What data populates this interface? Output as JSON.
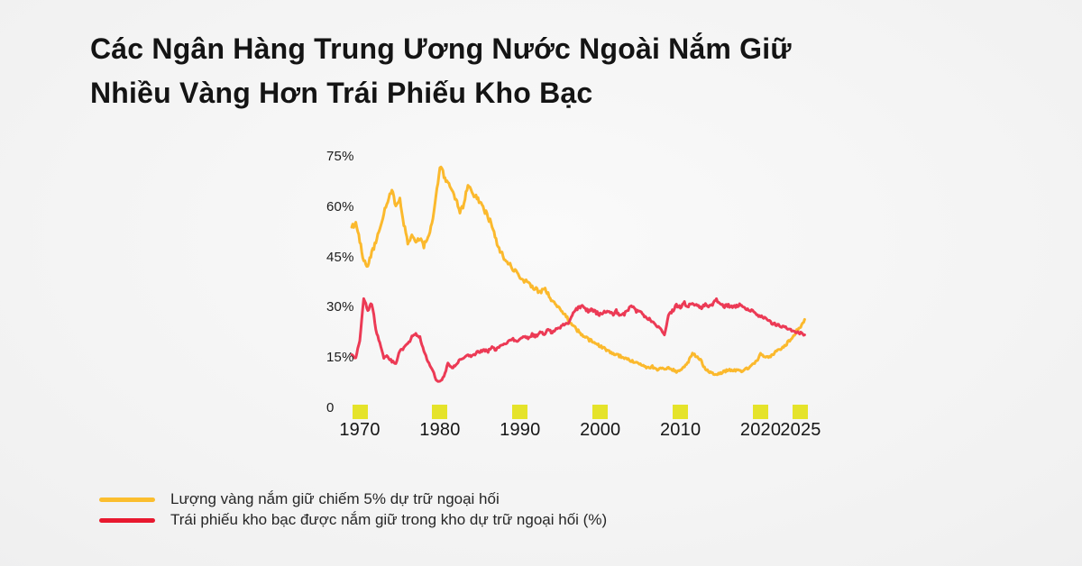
{
  "title": {
    "line1": "Các Ngân Hàng Trung Ương Nước Ngoài Nắm Giữ",
    "line2": "Nhiều Vàng Hơn Trái Phiếu Kho Bạc"
  },
  "colors": {
    "gold_line": "#FBB92D",
    "treasury_line": "#EC3A55",
    "legend_gold": "#FBBE2E",
    "legend_red": "#E8192F",
    "tick_marker": "#E5E32A",
    "title_text": "#141414",
    "axis_text": "#1A1A1A"
  },
  "legend": {
    "items": [
      {
        "label": "Lượng vàng nắm giữ chiếm 5% dự trữ ngoại hối",
        "color": "#FBBE2E"
      },
      {
        "label": "Trái phiếu kho bạc được nắm giữ trong kho dự trữ ngoại hối (%)",
        "color": "#E8192F"
      }
    ]
  },
  "chart_data": {
    "type": "line",
    "title": "",
    "xlabel": "",
    "ylabel": "",
    "grid": false,
    "legend_position": "bottom-left",
    "xlim": [
      1968.8,
      2026.2
    ],
    "ylim": [
      0,
      75
    ],
    "y_ticks": [
      {
        "label": "75%",
        "value": 75
      },
      {
        "label": "60%",
        "value": 60
      },
      {
        "label": "45%",
        "value": 45
      },
      {
        "label": "30%",
        "value": 30
      },
      {
        "label": "15%",
        "value": 15
      },
      {
        "label": "0",
        "value": 0
      }
    ],
    "x_ticks": [
      {
        "label": "1970",
        "year": 1970
      },
      {
        "label": "1980",
        "year": 1980
      },
      {
        "label": "1990",
        "year": 1990
      },
      {
        "label": "2000",
        "year": 2000
      },
      {
        "label": "2010",
        "year": 2010
      },
      {
        "label": "2020",
        "year": 2020
      },
      {
        "label": "2025",
        "year": 2025
      }
    ],
    "noise_texture_amplitude": 0.45,
    "series": [
      {
        "name": "Lượng vàng nắm giữ chiếm 5% dự trữ ngoại hối",
        "color": "#FBB92D",
        "points": [
          [
            1969,
            54
          ],
          [
            1969.5,
            55
          ],
          [
            1970,
            50
          ],
          [
            1970.5,
            44
          ],
          [
            1971,
            42.5
          ],
          [
            1971.5,
            46.5
          ],
          [
            1972,
            49.5
          ],
          [
            1972.5,
            54
          ],
          [
            1973,
            58
          ],
          [
            1973.5,
            62
          ],
          [
            1974,
            65
          ],
          [
            1974.5,
            60
          ],
          [
            1975,
            63
          ],
          [
            1975.5,
            55
          ],
          [
            1976,
            49.5
          ],
          [
            1976.5,
            51
          ],
          [
            1977,
            49.5
          ],
          [
            1977.5,
            50.5
          ],
          [
            1978,
            48.5
          ],
          [
            1978.5,
            51
          ],
          [
            1979,
            55
          ],
          [
            1979.5,
            63
          ],
          [
            1980,
            72
          ],
          [
            1980.5,
            69.5
          ],
          [
            1981,
            67
          ],
          [
            1981.5,
            64.5
          ],
          [
            1982,
            62
          ],
          [
            1982.5,
            58.5
          ],
          [
            1983,
            61
          ],
          [
            1983.5,
            67
          ],
          [
            1984,
            64.5
          ],
          [
            1984.5,
            63
          ],
          [
            1985,
            61
          ],
          [
            1985.5,
            59.5
          ],
          [
            1986,
            57
          ],
          [
            1986.5,
            54.5
          ],
          [
            1987,
            50
          ],
          [
            1987.5,
            47
          ],
          [
            1988,
            45
          ],
          [
            1988.5,
            43.5
          ],
          [
            1989,
            42
          ],
          [
            1989.5,
            40.5
          ],
          [
            1990,
            39
          ],
          [
            1990.5,
            38
          ],
          [
            1991,
            37.5
          ],
          [
            1991.5,
            36
          ],
          [
            1992,
            35.5
          ],
          [
            1992.5,
            34.5
          ],
          [
            1993,
            36
          ],
          [
            1993.5,
            34
          ],
          [
            1994,
            32
          ],
          [
            1994.5,
            31
          ],
          [
            1995,
            29.5
          ],
          [
            1995.5,
            28
          ],
          [
            1996,
            26.5
          ],
          [
            1996.5,
            25
          ],
          [
            1997,
            23.5
          ],
          [
            1997.5,
            22.5
          ],
          [
            1998,
            21.5
          ],
          [
            1998.5,
            20.5
          ],
          [
            1999,
            20
          ],
          [
            1999.5,
            19.5
          ],
          [
            2000,
            18.5
          ],
          [
            2000.5,
            18
          ],
          [
            2001,
            17
          ],
          [
            2001.5,
            16.5
          ],
          [
            2002,
            16
          ],
          [
            2002.5,
            15.5
          ],
          [
            2003,
            15
          ],
          [
            2003.5,
            14.5
          ],
          [
            2004,
            14
          ],
          [
            2004.5,
            13.5
          ],
          [
            2005,
            13
          ],
          [
            2005.5,
            12.5
          ],
          [
            2006,
            12
          ],
          [
            2006.5,
            12.5
          ],
          [
            2007,
            11.5
          ],
          [
            2007.5,
            12
          ],
          [
            2008,
            11.5
          ],
          [
            2008.5,
            12
          ],
          [
            2009,
            11.5
          ],
          [
            2009.5,
            11
          ],
          [
            2010,
            11.5
          ],
          [
            2010.5,
            12.5
          ],
          [
            2011,
            14
          ],
          [
            2011.5,
            16.5
          ],
          [
            2012,
            15.5
          ],
          [
            2012.5,
            14.5
          ],
          [
            2013,
            12
          ],
          [
            2013.5,
            11
          ],
          [
            2014,
            10.5
          ],
          [
            2014.5,
            10
          ],
          [
            2015,
            10.5
          ],
          [
            2015.5,
            11
          ],
          [
            2016,
            11.5
          ],
          [
            2016.5,
            11
          ],
          [
            2017,
            11.5
          ],
          [
            2017.5,
            11
          ],
          [
            2018,
            11.5
          ],
          [
            2018.5,
            12
          ],
          [
            2019,
            13
          ],
          [
            2019.5,
            14
          ],
          [
            2020,
            16.5
          ],
          [
            2020.5,
            15.5
          ],
          [
            2021,
            15
          ],
          [
            2021.5,
            16
          ],
          [
            2022,
            17
          ],
          [
            2022.5,
            17.5
          ],
          [
            2023,
            18.5
          ],
          [
            2023.5,
            20
          ],
          [
            2024,
            21
          ],
          [
            2024.5,
            23
          ],
          [
            2025,
            24.5
          ],
          [
            2025.5,
            26.5
          ]
        ]
      },
      {
        "name": "Trái phiếu kho bạc được nắm giữ trong kho dự trữ ngoại hối (%)",
        "color": "#EC3A55",
        "points": [
          [
            1969,
            16
          ],
          [
            1969.5,
            15
          ],
          [
            1970,
            20
          ],
          [
            1970.5,
            33
          ],
          [
            1971,
            29
          ],
          [
            1971.5,
            31.5
          ],
          [
            1972,
            23.5
          ],
          [
            1972.5,
            19.5
          ],
          [
            1973,
            15
          ],
          [
            1973.5,
            15.5
          ],
          [
            1974,
            14
          ],
          [
            1974.5,
            13.5
          ],
          [
            1975,
            17
          ],
          [
            1975.5,
            18
          ],
          [
            1976,
            19
          ],
          [
            1976.5,
            21.5
          ],
          [
            1977,
            22
          ],
          [
            1977.5,
            21
          ],
          [
            1978,
            17
          ],
          [
            1978.5,
            14
          ],
          [
            1979,
            12
          ],
          [
            1979.5,
            8.5
          ],
          [
            1980,
            8
          ],
          [
            1980.5,
            9.5
          ],
          [
            1981,
            13.5
          ],
          [
            1981.5,
            12
          ],
          [
            1982,
            13
          ],
          [
            1982.5,
            14.5
          ],
          [
            1983,
            15
          ],
          [
            1983.5,
            16
          ],
          [
            1984,
            15.5
          ],
          [
            1984.5,
            16.5
          ],
          [
            1985,
            17
          ],
          [
            1985.5,
            17.5
          ],
          [
            1986,
            17
          ],
          [
            1986.5,
            18
          ],
          [
            1987,
            17.5
          ],
          [
            1987.5,
            18.5
          ],
          [
            1988,
            19
          ],
          [
            1988.5,
            20
          ],
          [
            1989,
            21
          ],
          [
            1989.5,
            20
          ],
          [
            1990,
            20.5
          ],
          [
            1990.5,
            21.5
          ],
          [
            1991,
            21
          ],
          [
            1991.5,
            22
          ],
          [
            1992,
            21.5
          ],
          [
            1992.5,
            22.8
          ],
          [
            1993,
            22
          ],
          [
            1993.5,
            23.3
          ],
          [
            1994,
            22.5
          ],
          [
            1994.5,
            23.6
          ],
          [
            1995,
            24.1
          ],
          [
            1995.5,
            25
          ],
          [
            1996,
            25.5
          ],
          [
            1996.5,
            28
          ],
          [
            1997,
            29.5
          ],
          [
            1997.5,
            30.4
          ],
          [
            1998,
            30
          ],
          [
            1998.5,
            29
          ],
          [
            1999,
            29.5
          ],
          [
            1999.5,
            28.5
          ],
          [
            2000,
            28
          ],
          [
            2000.5,
            28.5
          ],
          [
            2001,
            29
          ],
          [
            2001.5,
            28
          ],
          [
            2002,
            29
          ],
          [
            2002.5,
            27.5
          ],
          [
            2003,
            28
          ],
          [
            2003.5,
            29.5
          ],
          [
            2004,
            30.3
          ],
          [
            2004.5,
            29
          ],
          [
            2005,
            28.5
          ],
          [
            2005.5,
            27.5
          ],
          [
            2006,
            26.8
          ],
          [
            2006.5,
            25.5
          ],
          [
            2007,
            24.5
          ],
          [
            2007.5,
            23.5
          ],
          [
            2008,
            22
          ],
          [
            2008.5,
            28
          ],
          [
            2009,
            29
          ],
          [
            2009.5,
            30.8
          ],
          [
            2010,
            30
          ],
          [
            2010.5,
            31.4
          ],
          [
            2011,
            30.3
          ],
          [
            2011.5,
            31.6
          ],
          [
            2012,
            30.8
          ],
          [
            2012.5,
            30
          ],
          [
            2013,
            30.8
          ],
          [
            2013.5,
            30.5
          ],
          [
            2014,
            31
          ],
          [
            2014.5,
            32.2
          ],
          [
            2015,
            31.4
          ],
          [
            2015.5,
            30.3
          ],
          [
            2016,
            30.8
          ],
          [
            2016.5,
            30
          ],
          [
            2017,
            30.3
          ],
          [
            2017.5,
            30.8
          ],
          [
            2018,
            30
          ],
          [
            2018.5,
            29.5
          ],
          [
            2019,
            29
          ],
          [
            2019.5,
            28.1
          ],
          [
            2020,
            27.3
          ],
          [
            2020.5,
            26.8
          ],
          [
            2021,
            26.2
          ],
          [
            2021.5,
            25.4
          ],
          [
            2022,
            24.9
          ],
          [
            2022.5,
            24.6
          ],
          [
            2023,
            24.1
          ],
          [
            2023.5,
            23.6
          ],
          [
            2024,
            23.2
          ],
          [
            2024.5,
            22.7
          ],
          [
            2025,
            22.3
          ],
          [
            2025.5,
            21.9
          ]
        ]
      }
    ]
  }
}
